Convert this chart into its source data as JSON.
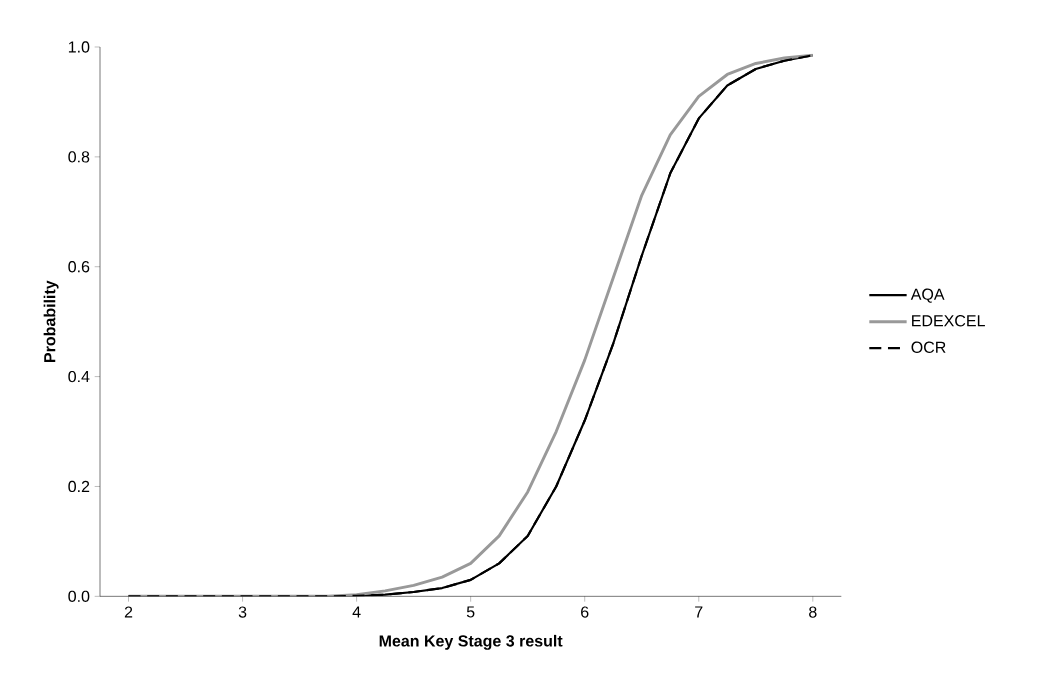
{
  "chart_data": {
    "type": "line",
    "xlabel": "Mean Key Stage 3 result",
    "ylabel": "Probability",
    "xlim": [
      1.75,
      8.25
    ],
    "xticks": [
      2,
      3,
      4,
      5,
      6,
      7,
      8
    ],
    "ylim": [
      0,
      1
    ],
    "yticks": [
      {
        "value": 0,
        "label": "0.0"
      },
      {
        "value": 0.2,
        "label": "0.2"
      },
      {
        "value": 0.4,
        "label": "0.4"
      },
      {
        "value": 0.6,
        "label": "0.6"
      },
      {
        "value": 0.8,
        "label": "0.8"
      },
      {
        "value": 1,
        "label": "1.0"
      }
    ],
    "grid": false,
    "legend": "right",
    "marker": "none",
    "x": [
      2,
      3,
      3.75,
      4,
      4.25,
      4.5,
      4.75,
      5,
      5.25,
      5.5,
      5.75,
      6,
      6.25,
      6.5,
      6.75,
      7,
      7.25,
      7.5,
      7.75,
      8
    ],
    "series": [
      {
        "name": "AQA",
        "color": "#000000",
        "line_style": "solid",
        "values": [
          0,
          0,
          0,
          0.001,
          0.003,
          0.008,
          0.015,
          0.03,
          0.06,
          0.11,
          0.2,
          0.32,
          0.46,
          0.62,
          0.77,
          0.87,
          0.93,
          0.96,
          0.975,
          0.985
        ]
      },
      {
        "name": "EDEXCEL",
        "color": "#999999",
        "line_style": "solid",
        "values": [
          0,
          0,
          0,
          0.003,
          0.01,
          0.02,
          0.035,
          0.06,
          0.11,
          0.19,
          0.3,
          0.43,
          0.58,
          0.73,
          0.84,
          0.91,
          0.95,
          0.97,
          0.98,
          0.985
        ]
      },
      {
        "name": "OCR",
        "color": "#000000",
        "line_style": "dashed",
        "values": [
          0,
          0,
          0,
          0.001,
          0.003,
          0.008,
          0.015,
          0.03,
          0.06,
          0.11,
          0.2,
          0.32,
          0.46,
          0.62,
          0.77,
          0.87,
          0.93,
          0.96,
          0.975,
          0.985
        ]
      }
    ]
  }
}
